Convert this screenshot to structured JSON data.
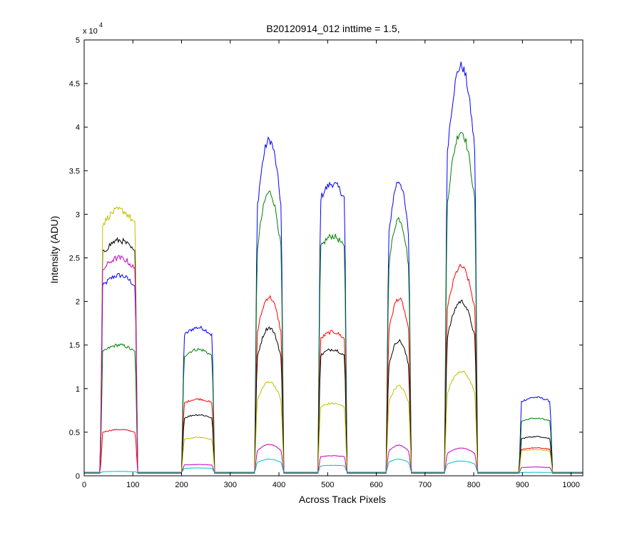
{
  "chart_data": {
    "type": "line",
    "title": "B20120914_012 inttime = 1.5,",
    "xlabel": "Across Track Pixels",
    "ylabel": "Intensity (ADU)",
    "xlim": [
      0,
      1024
    ],
    "ylim": [
      0,
      50000
    ],
    "x_ticks": [
      0,
      100,
      200,
      300,
      400,
      500,
      600,
      700,
      800,
      900,
      1000
    ],
    "y_ticks": [
      0,
      5000,
      10000,
      15000,
      20000,
      25000,
      30000,
      35000,
      40000,
      45000,
      50000
    ],
    "y_tick_labels": [
      "0",
      "0.5",
      "1",
      "1.5",
      "2",
      "2.5",
      "3",
      "3.5",
      "4",
      "4.5",
      "5"
    ],
    "y_multiplier_base": "x 10",
    "y_multiplier_exp": "4",
    "grid": false,
    "legend": "none",
    "baseline": 300,
    "segments": [
      {
        "x0": 33,
        "x1": 110,
        "shape": "flat"
      },
      {
        "x0": 200,
        "x1": 268,
        "shape": "flat"
      },
      {
        "x0": 350,
        "x1": 410,
        "shape": "dome"
      },
      {
        "x0": 480,
        "x1": 540,
        "shape": "flat"
      },
      {
        "x0": 620,
        "x1": 672,
        "shape": "dome"
      },
      {
        "x0": 740,
        "x1": 808,
        "shape": "dome"
      },
      {
        "x0": 893,
        "x1": 962,
        "shape": "flat"
      }
    ],
    "series": [
      {
        "color": "#0000ff",
        "peaks": [
          23000,
          17000,
          38500,
          33500,
          33800,
          47000,
          9000
        ]
      },
      {
        "color": "#008000",
        "peaks": [
          15000,
          14500,
          32500,
          27500,
          29500,
          39500,
          6600
        ]
      },
      {
        "color": "#ff0000",
        "peaks": [
          5300,
          8800,
          20500,
          16500,
          20300,
          24000,
          3200
        ]
      },
      {
        "color": "#000000",
        "peaks": [
          27000,
          7000,
          17000,
          14500,
          15500,
          20000,
          4500
        ]
      },
      {
        "color": "#c0c000",
        "peaks": [
          30500,
          4400,
          10800,
          8300,
          10300,
          12000,
          3000
        ]
      },
      {
        "color": "#c000c0",
        "peaks": [
          25000,
          1300,
          3600,
          2300,
          3500,
          3200,
          1000
        ]
      },
      {
        "color": "#00c0c0",
        "peaks": [
          500,
          900,
          1900,
          1200,
          1900,
          1700,
          400
        ]
      }
    ]
  }
}
